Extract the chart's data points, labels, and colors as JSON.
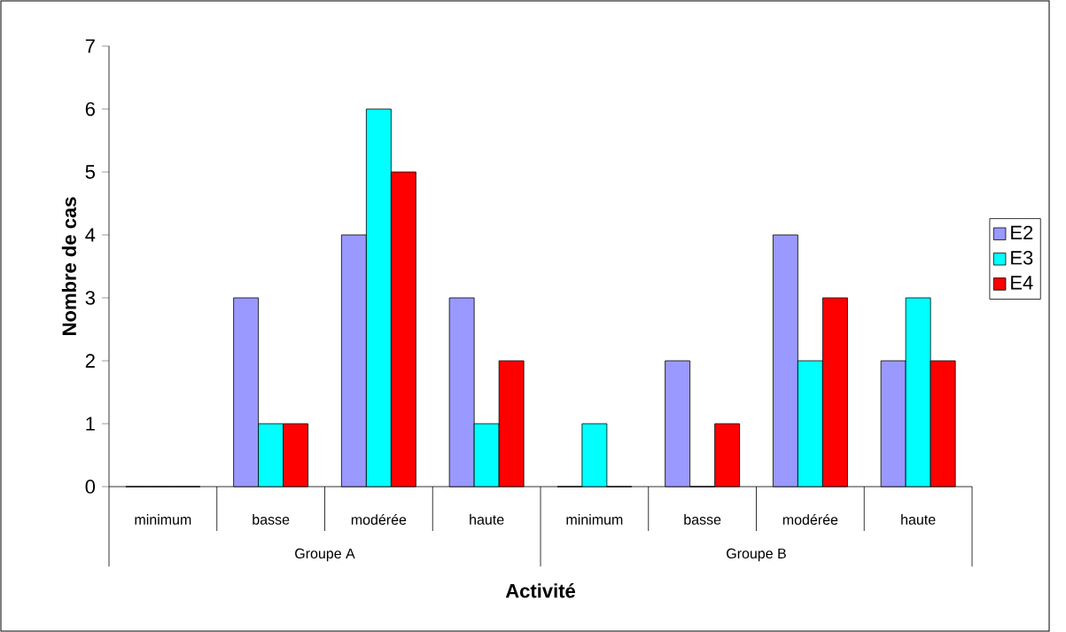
{
  "chart_data": {
    "type": "bar",
    "xlabel": "Activité",
    "ylabel": "Nombre de cas",
    "categories": [
      "minimum",
      "basse",
      "modérée",
      "haute",
      "minimum",
      "basse",
      "modérée",
      "haute"
    ],
    "annotations": [
      "Groupe A",
      "Groupe B"
    ],
    "series": [
      {
        "name": "E2",
        "color": "#9999ff",
        "values": [
          0,
          3,
          4,
          3,
          0,
          2,
          4,
          2
        ]
      },
      {
        "name": "E3",
        "color": "#00ffff",
        "values": [
          0,
          1,
          6,
          1,
          1,
          0,
          2,
          3
        ]
      },
      {
        "name": "E4",
        "color": "#ff0000",
        "values": [
          0,
          1,
          5,
          2,
          0,
          1,
          3,
          2
        ]
      }
    ],
    "ylim": [
      0,
      7
    ],
    "yticks": [
      0,
      1,
      2,
      3,
      4,
      5,
      6,
      7
    ],
    "legend": "right"
  }
}
